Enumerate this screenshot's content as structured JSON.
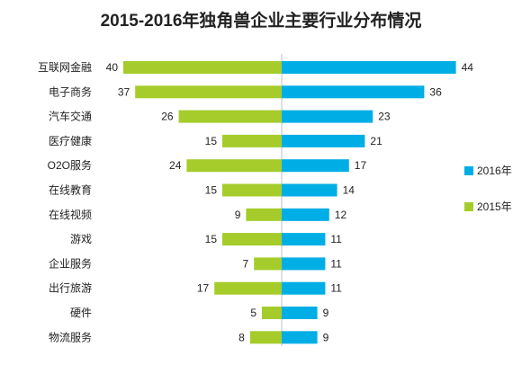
{
  "chart_data": {
    "type": "bar",
    "orientation": "horizontal-diverging",
    "title": "2015-2016年独角兽企业主要行业分布情况",
    "categories": [
      "互联网金融",
      "电子商务",
      "汽车交通",
      "医疗健康",
      "O2O服务",
      "在线教育",
      "在线视频",
      "游戏",
      "企业服务",
      "出行旅游",
      "硬件",
      "物流服务"
    ],
    "series": [
      {
        "name": "2016年",
        "color": "#00aee6",
        "values": [
          44,
          36,
          23,
          21,
          17,
          14,
          12,
          11,
          11,
          11,
          9,
          9
        ]
      },
      {
        "name": "2015年",
        "color": "#a5cc2b",
        "values": [
          40,
          37,
          26,
          15,
          24,
          15,
          9,
          15,
          7,
          17,
          5,
          8
        ]
      }
    ],
    "legend_position": "right",
    "grid": false
  }
}
